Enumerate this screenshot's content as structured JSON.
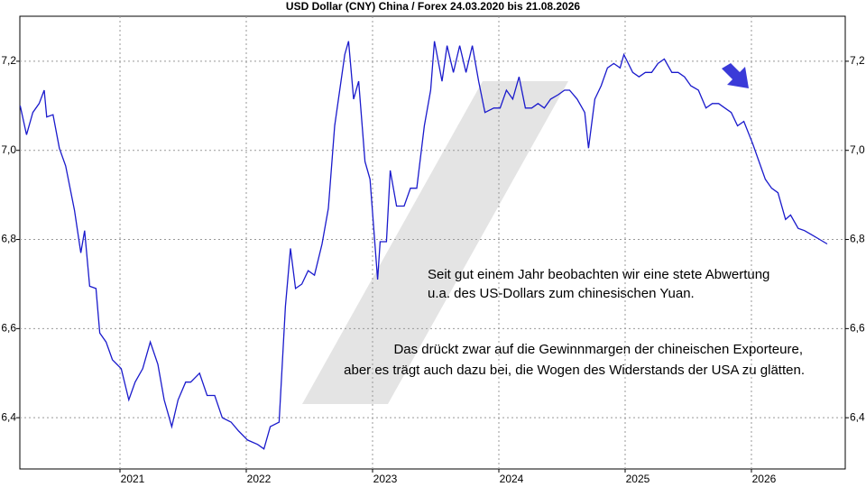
{
  "chart_data": {
    "type": "line",
    "title": "USD Dollar (CNY) China / Forex 24.03.2020 bis 21.08.2026",
    "annotations": [
      "Seit gut einem Jahr beobachten wir eine stete Abwertung",
      "u.a. des US-Dollars zum chinesischen Yuan.",
      "Das drückt zwar auf die Gewinnmargen der chineischen Exporteure,",
      "aber es trägt auch dazu bei, die Wogen des Widerstands der USA zu glätten."
    ],
    "xlim": [
      2020.207,
      2026.743
    ],
    "xticks": [
      2021,
      2022,
      2023,
      2024,
      2025,
      2026
    ],
    "ylim": [
      6.285,
      7.301
    ],
    "yticks": [
      {
        "value": 6.4,
        "label": "6,4"
      },
      {
        "value": 6.6,
        "label": "6,6"
      },
      {
        "value": 6.8,
        "label": "6,8"
      },
      {
        "value": 7.0,
        "label": "7,0"
      },
      {
        "value": 7.2,
        "label": "7,2"
      }
    ],
    "grid": true,
    "series": [
      {
        "color": "#1a1acc",
        "x": [
          2020.21,
          2020.26,
          2020.31,
          2020.36,
          2020.4,
          2020.42,
          2020.47,
          2020.52,
          2020.57,
          2020.64,
          2020.69,
          2020.72,
          2020.76,
          2020.81,
          2020.84,
          2020.89,
          2020.94,
          2021.01,
          2021.07,
          2021.12,
          2021.18,
          2021.24,
          2021.3,
          2021.35,
          2021.41,
          2021.46,
          2021.52,
          2021.56,
          2021.63,
          2021.69,
          2021.75,
          2021.81,
          2021.88,
          2021.94,
          2022.01,
          2022.09,
          2022.14,
          2022.19,
          2022.26,
          2022.31,
          2022.35,
          2022.39,
          2022.44,
          2022.49,
          2022.54,
          2022.6,
          2022.65,
          2022.7,
          2022.74,
          2022.78,
          2022.81,
          2022.85,
          2022.89,
          2022.94,
          2022.98,
          2023.04,
          2023.06,
          2023.11,
          2023.14,
          2023.19,
          2023.25,
          2023.3,
          2023.35,
          2023.41,
          2023.46,
          2023.49,
          2023.55,
          2023.59,
          2023.64,
          2023.69,
          2023.74,
          2023.79,
          2023.84,
          2023.89,
          2023.96,
          2024.01,
          2024.06,
          2024.11,
          2024.16,
          2024.21,
          2024.26,
          2024.31,
          2024.36,
          2024.41,
          2024.47,
          2024.52,
          2024.56,
          2024.62,
          2024.68,
          2024.71,
          2024.76,
          2024.81,
          2024.86,
          2024.91,
          2024.96,
          2024.99,
          2025.06,
          2025.11,
          2025.16,
          2025.21,
          2025.26,
          2025.31,
          2025.37,
          2025.42,
          2025.47,
          2025.52,
          2025.58,
          2025.64,
          2025.69,
          2025.74,
          2025.79,
          2025.84,
          2025.89,
          2025.94,
          2026.01,
          2026.06,
          2026.11,
          2026.16,
          2026.21,
          2026.27,
          2026.31,
          2026.37,
          2026.42,
          2026.48,
          2026.54,
          2026.6
        ],
        "values": [
          7.1,
          7.035,
          7.085,
          7.105,
          7.135,
          7.075,
          7.08,
          7.005,
          6.965,
          6.865,
          6.77,
          6.82,
          6.695,
          6.69,
          6.59,
          6.57,
          6.53,
          6.51,
          6.44,
          6.48,
          6.51,
          6.57,
          6.52,
          6.44,
          6.38,
          6.44,
          6.48,
          6.48,
          6.5,
          6.45,
          6.45,
          6.4,
          6.39,
          6.37,
          6.35,
          6.34,
          6.33,
          6.38,
          6.39,
          6.65,
          6.78,
          6.69,
          6.7,
          6.73,
          6.72,
          6.79,
          6.87,
          7.055,
          7.135,
          7.215,
          7.245,
          7.115,
          7.155,
          6.975,
          6.935,
          6.71,
          6.795,
          6.795,
          6.955,
          6.875,
          6.875,
          6.915,
          6.915,
          7.055,
          7.135,
          7.245,
          7.155,
          7.235,
          7.175,
          7.235,
          7.175,
          7.235,
          7.155,
          7.085,
          7.095,
          7.095,
          7.135,
          7.115,
          7.165,
          7.095,
          7.095,
          7.105,
          7.095,
          7.115,
          7.125,
          7.135,
          7.135,
          7.115,
          7.085,
          7.005,
          7.115,
          7.145,
          7.185,
          7.195,
          7.185,
          7.215,
          7.175,
          7.165,
          7.175,
          7.175,
          7.195,
          7.205,
          7.175,
          7.175,
          7.165,
          7.145,
          7.135,
          7.095,
          7.105,
          7.105,
          7.095,
          7.085,
          7.055,
          7.065,
          7.015,
          6.975,
          6.935,
          6.915,
          6.905,
          6.845,
          6.855,
          6.825,
          6.82,
          6.81,
          6.8,
          6.79
        ]
      }
    ]
  }
}
